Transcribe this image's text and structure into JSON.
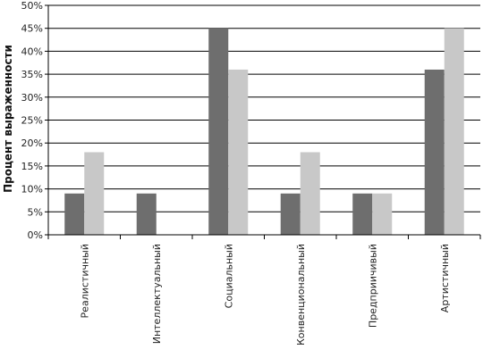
{
  "chart_data": {
    "type": "bar",
    "title": "",
    "xlabel": "",
    "ylabel": "Процент выраженности",
    "ylim": [
      0,
      50
    ],
    "yticks": [
      "0%",
      "5%",
      "10%",
      "15%",
      "20%",
      "25%",
      "30%",
      "35%",
      "40%",
      "45%",
      "50%"
    ],
    "ytick_values": [
      0,
      5,
      10,
      15,
      20,
      25,
      30,
      35,
      40,
      45,
      50
    ],
    "grid": true,
    "legend": "none",
    "categories": [
      "Реалистичный",
      "Интеллектуальный",
      "Социальный",
      "Конвенциональный",
      "Предприичивый",
      "Артистичный"
    ],
    "series": [
      {
        "values": [
          9,
          9,
          45,
          9,
          9,
          36
        ],
        "color": "#6e6e6e"
      },
      {
        "values": [
          18,
          0,
          36,
          18,
          9,
          45
        ],
        "color": "#c8c8c8"
      }
    ]
  }
}
